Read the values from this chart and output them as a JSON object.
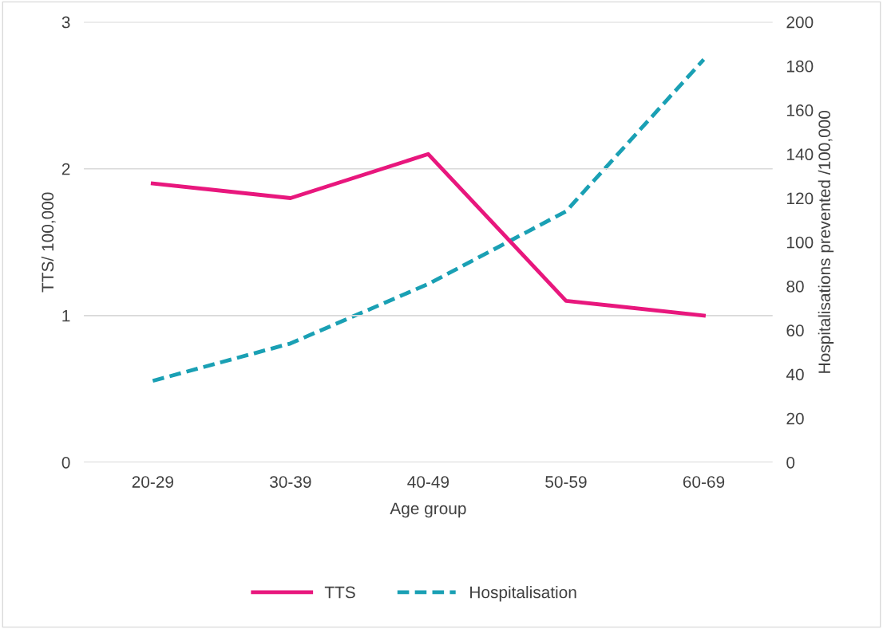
{
  "chart_data": {
    "type": "line",
    "xlabel": "Age group",
    "ylabel": "TTS/ 100,000",
    "y2label": "Hospitalisations prevented /100,000",
    "categories": [
      "20-29",
      "30-39",
      "40-49",
      "50-59",
      "60-69"
    ],
    "series": [
      {
        "name": "TTS",
        "color": "#e8177d",
        "values": [
          1.9,
          1.8,
          2.1,
          1.1,
          1.0
        ],
        "line_style": "solid"
      },
      {
        "name": "Hospitalisation",
        "color": "#1aa0b4",
        "values": [
          37,
          54,
          81,
          114,
          183
        ],
        "axis": "y2",
        "line_style": "dashed"
      }
    ],
    "ylim": [
      0,
      3
    ],
    "yticks": [
      0,
      1,
      2,
      3
    ],
    "y2lim": [
      0,
      200
    ],
    "y2ticks": [
      0,
      20,
      40,
      60,
      80,
      100,
      120,
      140,
      160,
      180,
      200
    ],
    "grid": "y",
    "legend": "bottom",
    "marker": "none"
  }
}
